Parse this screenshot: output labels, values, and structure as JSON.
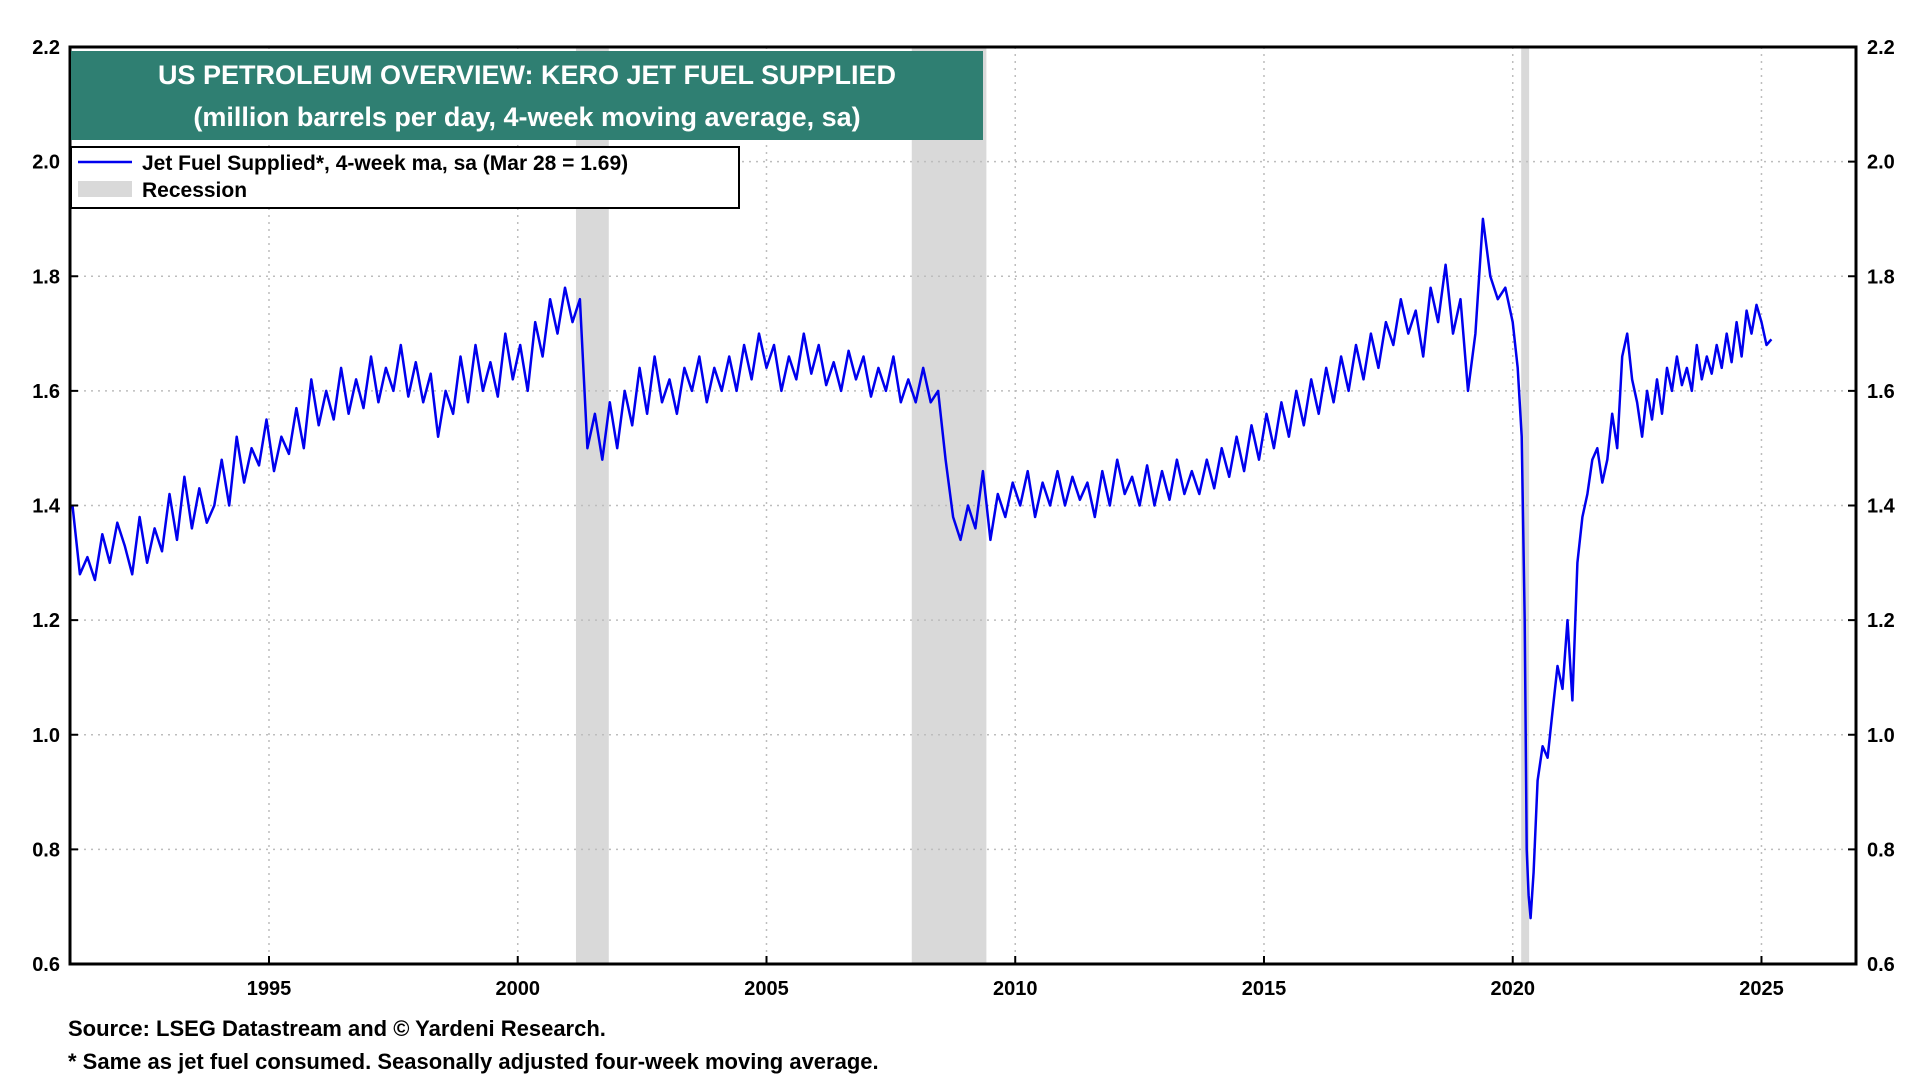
{
  "chart_data": {
    "type": "line",
    "title": "US PETROLEUM OVERVIEW: KERO JET FUEL SUPPLIED",
    "subtitle": "(million barrels per day, 4-week moving average, sa)",
    "xlabel": "",
    "ylabel": "",
    "xlim": [
      1991.0,
      2026.9
    ],
    "ylim": [
      0.6,
      2.2
    ],
    "x_ticks": [
      1995,
      2000,
      2005,
      2010,
      2015,
      2020,
      2025
    ],
    "y_ticks": [
      "0.6",
      "0.8",
      "1.0",
      "1.2",
      "1.4",
      "1.6",
      "1.8",
      "2.0",
      "2.2"
    ],
    "grid": true,
    "legend_placement": "top-left",
    "legend": [
      {
        "label": "Jet Fuel Supplied*, 4-week ma, sa (Mar 28 = 1.69)",
        "kind": "line",
        "color": "#0000ee"
      },
      {
        "label": "Recession",
        "kind": "band",
        "color": "#d9d9d9"
      }
    ],
    "recessions": [
      [
        2001.17,
        2001.83
      ],
      [
        2007.92,
        2009.42
      ],
      [
        2020.17,
        2020.33
      ]
    ],
    "series": [
      {
        "name": "Jet Fuel Supplied*, 4-week ma, sa (Mar 28 = 1.69)",
        "color": "#0000ee",
        "x": [
          1991.05,
          1991.2,
          1991.35,
          1991.5,
          1991.65,
          1991.8,
          1991.95,
          1992.1,
          1992.25,
          1992.4,
          1992.55,
          1992.7,
          1992.85,
          1993.0,
          1993.15,
          1993.3,
          1993.45,
          1993.6,
          1993.75,
          1993.9,
          1994.05,
          1994.2,
          1994.35,
          1994.5,
          1994.65,
          1994.8,
          1994.95,
          1995.1,
          1995.25,
          1995.4,
          1995.55,
          1995.7,
          1995.85,
          1996.0,
          1996.15,
          1996.3,
          1996.45,
          1996.6,
          1996.75,
          1996.9,
          1997.05,
          1997.2,
          1997.35,
          1997.5,
          1997.65,
          1997.8,
          1997.95,
          1998.1,
          1998.25,
          1998.4,
          1998.55,
          1998.7,
          1998.85,
          1999.0,
          1999.15,
          1999.3,
          1999.45,
          1999.6,
          1999.75,
          1999.9,
          2000.05,
          2000.2,
          2000.35,
          2000.5,
          2000.65,
          2000.8,
          2000.95,
          2001.1,
          2001.25,
          2001.4,
          2001.55,
          2001.7,
          2001.85,
          2002.0,
          2002.15,
          2002.3,
          2002.45,
          2002.6,
          2002.75,
          2002.9,
          2003.05,
          2003.2,
          2003.35,
          2003.5,
          2003.65,
          2003.8,
          2003.95,
          2004.1,
          2004.25,
          2004.4,
          2004.55,
          2004.7,
          2004.85,
          2005.0,
          2005.15,
          2005.3,
          2005.45,
          2005.6,
          2005.75,
          2005.9,
          2006.05,
          2006.2,
          2006.35,
          2006.5,
          2006.65,
          2006.8,
          2006.95,
          2007.1,
          2007.25,
          2007.4,
          2007.55,
          2007.7,
          2007.85,
          2008.0,
          2008.15,
          2008.3,
          2008.45,
          2008.6,
          2008.75,
          2008.9,
          2009.05,
          2009.2,
          2009.35,
          2009.5,
          2009.65,
          2009.8,
          2009.95,
          2010.1,
          2010.25,
          2010.4,
          2010.55,
          2010.7,
          2010.85,
          2011.0,
          2011.15,
          2011.3,
          2011.45,
          2011.6,
          2011.75,
          2011.9,
          2012.05,
          2012.2,
          2012.35,
          2012.5,
          2012.65,
          2012.8,
          2012.95,
          2013.1,
          2013.25,
          2013.4,
          2013.55,
          2013.7,
          2013.85,
          2014.0,
          2014.15,
          2014.3,
          2014.45,
          2014.6,
          2014.75,
          2014.9,
          2015.05,
          2015.2,
          2015.35,
          2015.5,
          2015.65,
          2015.8,
          2015.95,
          2016.1,
          2016.25,
          2016.4,
          2016.55,
          2016.7,
          2016.85,
          2017.0,
          2017.15,
          2017.3,
          2017.45,
          2017.6,
          2017.75,
          2017.9,
          2018.05,
          2018.2,
          2018.35,
          2018.5,
          2018.65,
          2018.8,
          2018.95,
          2019.1,
          2019.25,
          2019.4,
          2019.55,
          2019.7,
          2019.85,
          2020.0,
          2020.1,
          2020.18,
          2020.24,
          2020.28,
          2020.32,
          2020.36,
          2020.42,
          2020.5,
          2020.6,
          2020.7,
          2020.8,
          2020.9,
          2021.0,
          2021.1,
          2021.2,
          2021.3,
          2021.4,
          2021.5,
          2021.6,
          2021.7,
          2021.8,
          2021.9,
          2022.0,
          2022.1,
          2022.2,
          2022.3,
          2022.4,
          2022.5,
          2022.6,
          2022.7,
          2022.8,
          2022.9,
          2023.0,
          2023.1,
          2023.2,
          2023.3,
          2023.4,
          2023.5,
          2023.6,
          2023.7,
          2023.8,
          2023.9,
          2024.0,
          2024.1,
          2024.2,
          2024.3,
          2024.4,
          2024.5,
          2024.6,
          2024.7,
          2024.8,
          2024.9,
          2025.0,
          2025.1,
          2025.2
        ],
        "values": [
          1.4,
          1.28,
          1.31,
          1.27,
          1.35,
          1.3,
          1.37,
          1.33,
          1.28,
          1.38,
          1.3,
          1.36,
          1.32,
          1.42,
          1.34,
          1.45,
          1.36,
          1.43,
          1.37,
          1.4,
          1.48,
          1.4,
          1.52,
          1.44,
          1.5,
          1.47,
          1.55,
          1.46,
          1.52,
          1.49,
          1.57,
          1.5,
          1.62,
          1.54,
          1.6,
          1.55,
          1.64,
          1.56,
          1.62,
          1.57,
          1.66,
          1.58,
          1.64,
          1.6,
          1.68,
          1.59,
          1.65,
          1.58,
          1.63,
          1.52,
          1.6,
          1.56,
          1.66,
          1.58,
          1.68,
          1.6,
          1.65,
          1.59,
          1.7,
          1.62,
          1.68,
          1.6,
          1.72,
          1.66,
          1.76,
          1.7,
          1.78,
          1.72,
          1.76,
          1.5,
          1.56,
          1.48,
          1.58,
          1.5,
          1.6,
          1.54,
          1.64,
          1.56,
          1.66,
          1.58,
          1.62,
          1.56,
          1.64,
          1.6,
          1.66,
          1.58,
          1.64,
          1.6,
          1.66,
          1.6,
          1.68,
          1.62,
          1.7,
          1.64,
          1.68,
          1.6,
          1.66,
          1.62,
          1.7,
          1.63,
          1.68,
          1.61,
          1.65,
          1.6,
          1.67,
          1.62,
          1.66,
          1.59,
          1.64,
          1.6,
          1.66,
          1.58,
          1.62,
          1.58,
          1.64,
          1.58,
          1.6,
          1.48,
          1.38,
          1.34,
          1.4,
          1.36,
          1.46,
          1.34,
          1.42,
          1.38,
          1.44,
          1.4,
          1.46,
          1.38,
          1.44,
          1.4,
          1.46,
          1.4,
          1.45,
          1.41,
          1.44,
          1.38,
          1.46,
          1.4,
          1.48,
          1.42,
          1.45,
          1.4,
          1.47,
          1.4,
          1.46,
          1.41,
          1.48,
          1.42,
          1.46,
          1.42,
          1.48,
          1.43,
          1.5,
          1.45,
          1.52,
          1.46,
          1.54,
          1.48,
          1.56,
          1.5,
          1.58,
          1.52,
          1.6,
          1.54,
          1.62,
          1.56,
          1.64,
          1.58,
          1.66,
          1.6,
          1.68,
          1.62,
          1.7,
          1.64,
          1.72,
          1.68,
          1.76,
          1.7,
          1.74,
          1.66,
          1.78,
          1.72,
          1.82,
          1.7,
          1.76,
          1.6,
          1.7,
          1.9,
          1.8,
          1.76,
          1.78,
          1.72,
          1.64,
          1.52,
          1.2,
          0.8,
          0.72,
          0.68,
          0.76,
          0.92,
          0.98,
          0.96,
          1.04,
          1.12,
          1.08,
          1.2,
          1.06,
          1.3,
          1.38,
          1.42,
          1.48,
          1.5,
          1.44,
          1.48,
          1.56,
          1.5,
          1.66,
          1.7,
          1.62,
          1.58,
          1.52,
          1.6,
          1.55,
          1.62,
          1.56,
          1.64,
          1.6,
          1.66,
          1.61,
          1.64,
          1.6,
          1.68,
          1.62,
          1.66,
          1.63,
          1.68,
          1.64,
          1.7,
          1.65,
          1.72,
          1.66,
          1.74,
          1.7,
          1.75,
          1.72,
          1.68,
          1.69
        ]
      }
    ]
  },
  "footnotes": {
    "source": "Source: LSEG Datastream and © Yardeni Research.",
    "note": "* Same as jet fuel consumed. Seasonally adjusted four-week moving average."
  }
}
